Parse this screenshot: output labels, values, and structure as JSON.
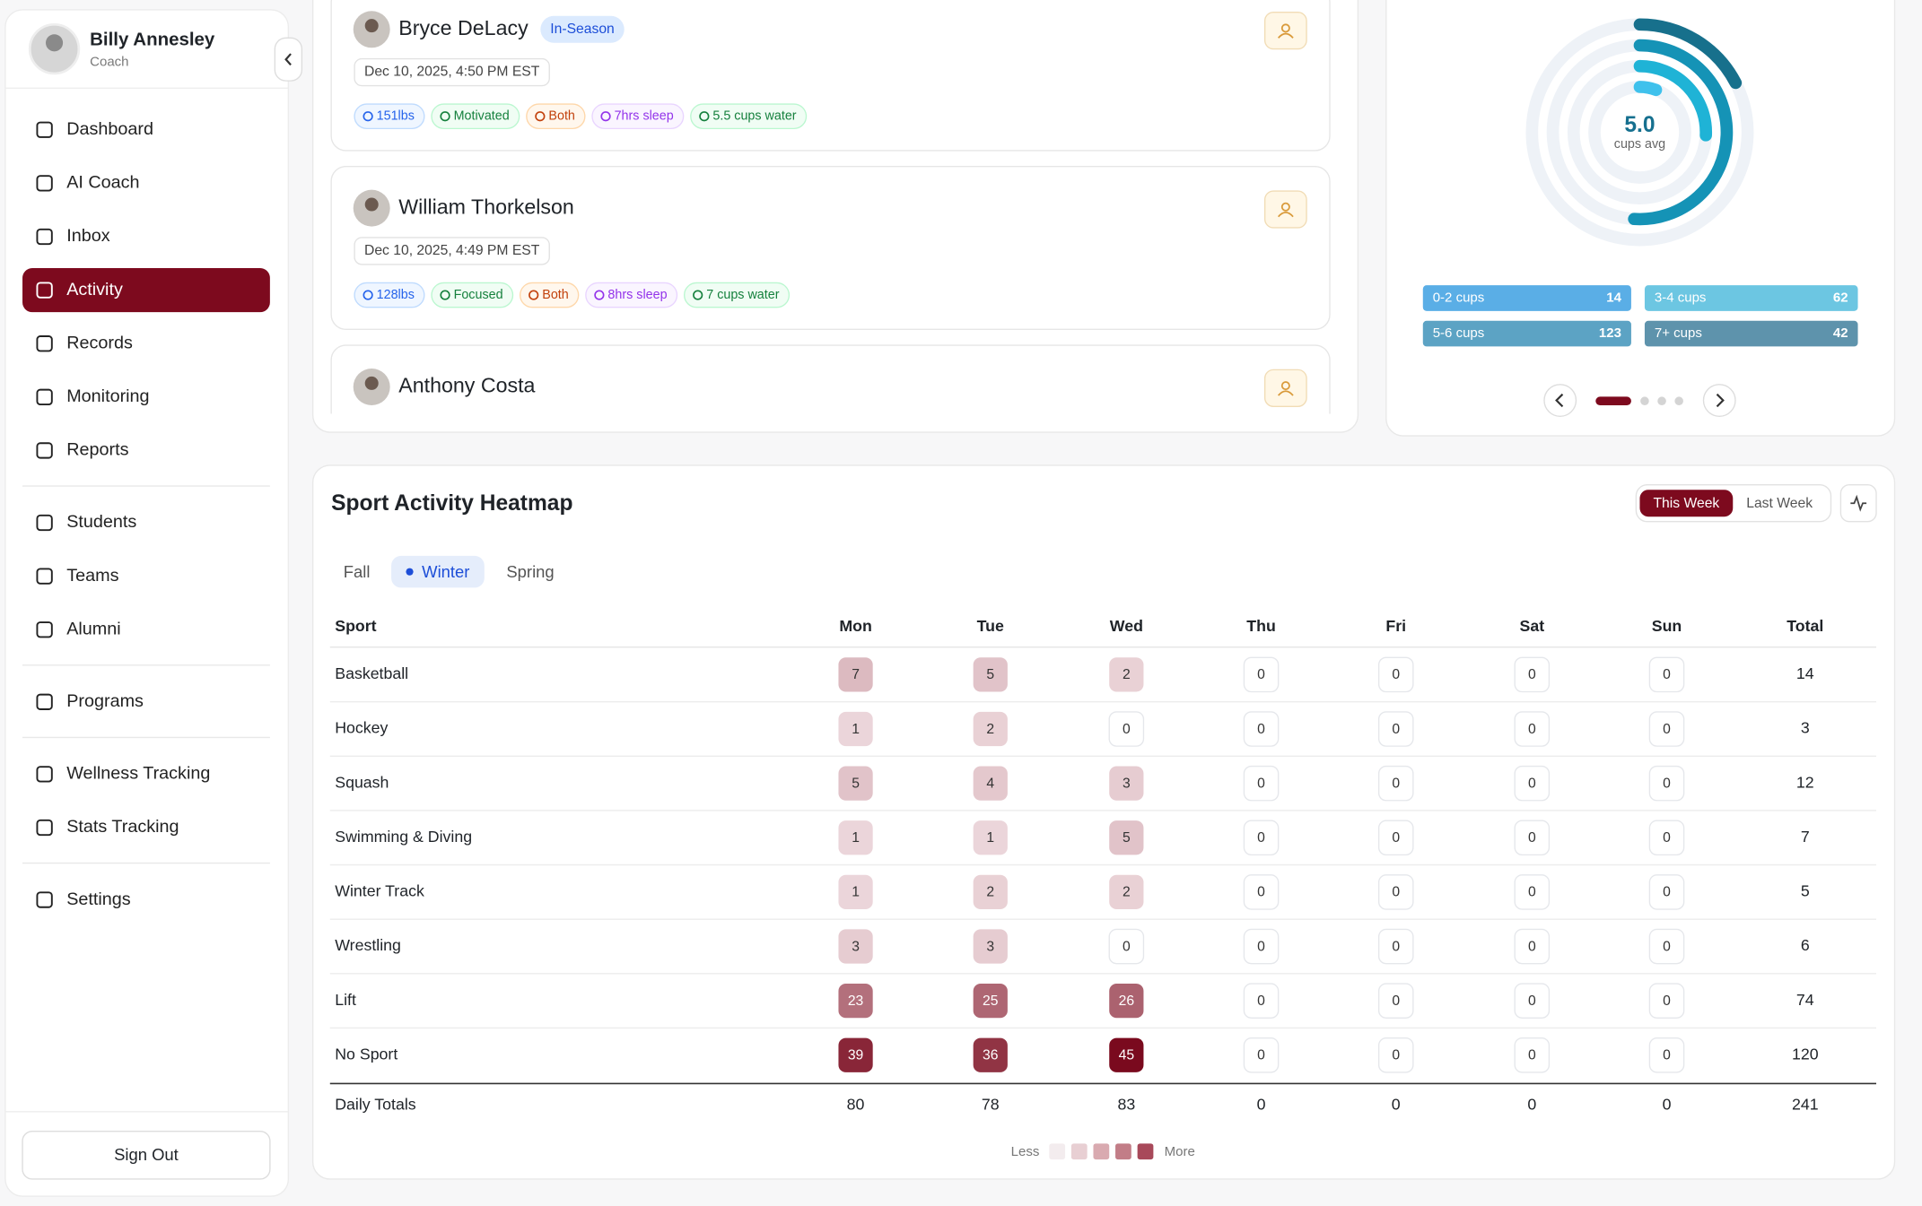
{
  "sidebar": {
    "user": {
      "name": "Billy Annesley",
      "role": "Coach"
    },
    "nav": [
      [
        {
          "label": "Dashboard"
        },
        {
          "label": "AI Coach"
        },
        {
          "label": "Inbox"
        },
        {
          "label": "Activity",
          "active": true
        },
        {
          "label": "Records"
        },
        {
          "label": "Monitoring"
        },
        {
          "label": "Reports"
        }
      ],
      [
        {
          "label": "Students"
        },
        {
          "label": "Teams"
        },
        {
          "label": "Alumni"
        }
      ],
      [
        {
          "label": "Programs"
        }
      ],
      [
        {
          "label": "Wellness Tracking"
        },
        {
          "label": "Stats Tracking"
        }
      ],
      [
        {
          "label": "Settings"
        }
      ]
    ],
    "sign_out": "Sign Out"
  },
  "activity_feed": {
    "entries": [
      {
        "name": "Bryce DeLacy",
        "badge": "In-Season",
        "timestamp": "Dec 10, 2025, 4:50 PM EST",
        "tags": [
          "151lbs",
          "Motivated",
          "Both",
          "7hrs sleep",
          "5.5 cups water"
        ]
      },
      {
        "name": "William Thorkelson",
        "timestamp": "Dec 10, 2025, 4:49 PM EST",
        "tags": [
          "128lbs",
          "Focused",
          "Both",
          "8hrs sleep",
          "7 cups water"
        ]
      },
      {
        "name": "Anthony Costa"
      }
    ]
  },
  "hydration": {
    "center_value": "5.0",
    "center_label": "cups avg",
    "buckets": [
      {
        "label": "0-2 cups",
        "value": 14,
        "color": "#5aaee6",
        "ring": "#3fc1ec"
      },
      {
        "label": "3-4 cups",
        "value": 62,
        "color": "#6cc6e2",
        "ring": "#1fb3d6"
      },
      {
        "label": "5-6 cups",
        "value": 123,
        "color": "#5ca3c4",
        "ring": "#1593b6"
      },
      {
        "label": "7+ cups",
        "value": 42,
        "color": "#5e93ac",
        "ring": "#17708c"
      }
    ]
  },
  "heatmap": {
    "title": "Sport Activity Heatmap",
    "toggle": [
      {
        "label": "This Week",
        "active": true
      },
      {
        "label": "Last Week"
      }
    ],
    "seasons": [
      {
        "label": "Fall"
      },
      {
        "label": "Winter",
        "active": true
      },
      {
        "label": "Spring"
      }
    ],
    "columns": [
      "Sport",
      "Mon",
      "Tue",
      "Wed",
      "Thu",
      "Fri",
      "Sat",
      "Sun",
      "Total"
    ],
    "rows": [
      {
        "sport": "Basketball",
        "values": [
          7,
          5,
          2,
          0,
          0,
          0,
          0
        ],
        "total": 14
      },
      {
        "sport": "Hockey",
        "values": [
          1,
          2,
          0,
          0,
          0,
          0,
          0
        ],
        "total": 3
      },
      {
        "sport": "Squash",
        "values": [
          5,
          4,
          3,
          0,
          0,
          0,
          0
        ],
        "total": 12
      },
      {
        "sport": "Swimming & Diving",
        "values": [
          1,
          1,
          5,
          0,
          0,
          0,
          0
        ],
        "total": 7
      },
      {
        "sport": "Winter Track",
        "values": [
          1,
          2,
          2,
          0,
          0,
          0,
          0
        ],
        "total": 5
      },
      {
        "sport": "Wrestling",
        "values": [
          3,
          3,
          0,
          0,
          0,
          0,
          0
        ],
        "total": 6
      },
      {
        "sport": "Lift",
        "values": [
          23,
          25,
          26,
          0,
          0,
          0,
          0
        ],
        "total": 74
      },
      {
        "sport": "No Sport",
        "values": [
          39,
          36,
          45,
          0,
          0,
          0,
          0
        ],
        "total": 120
      }
    ],
    "totals": {
      "label": "Daily Totals",
      "values": [
        80,
        78,
        83,
        0,
        0,
        0,
        0
      ],
      "total": 241
    },
    "legend": {
      "less": "Less",
      "more": "More"
    }
  }
}
